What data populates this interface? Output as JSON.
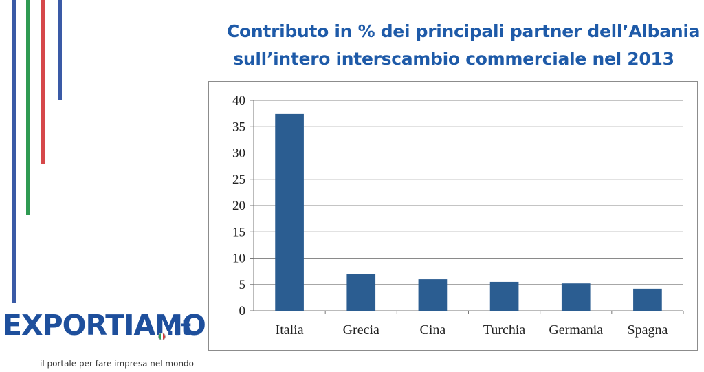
{
  "brand": {
    "logo_text": "EXPORTIAMO",
    "logo_suffix": ".it",
    "tagline": "il portale per fare impresa nel mondo",
    "colors": {
      "blue": "#1e4f9c",
      "green": "#2f9a52",
      "red": "#d6484a",
      "stripe_blue": "#3a5aa6"
    }
  },
  "title": {
    "line1": "Contributo in % dei principali partner dell’Albania",
    "line2": "sull’intero interscambio commerciale nel 2013"
  },
  "chart_data": {
    "type": "bar",
    "categories": [
      "Italia",
      "Grecia",
      "Cina",
      "Turchia",
      "Germania",
      "Spagna"
    ],
    "values": [
      37.4,
      7.0,
      6.0,
      5.5,
      5.2,
      4.2
    ],
    "ylim": [
      0,
      40
    ],
    "yticks": [
      0,
      5,
      10,
      15,
      20,
      25,
      30,
      35,
      40
    ],
    "grid": true,
    "bar_color": "#2b5d91",
    "xlabel": "",
    "ylabel": ""
  }
}
